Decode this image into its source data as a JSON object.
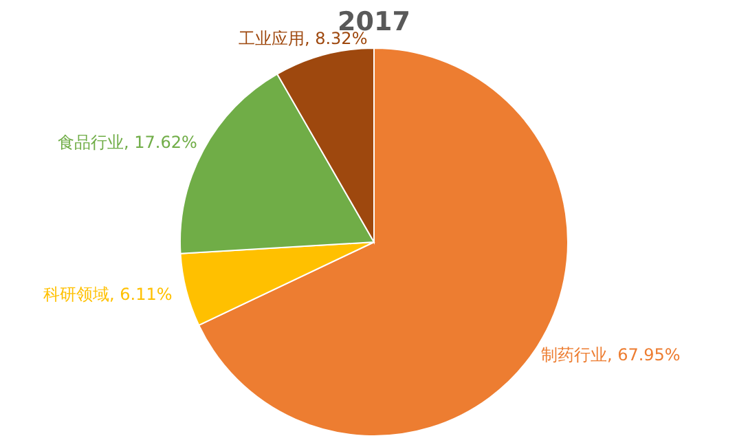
{
  "chart_data": {
    "type": "pie",
    "title": "2017",
    "categories": [
      "制药行业, 67.95%",
      "科研领域, 6.11%",
      "食品行业, 17.62%",
      "工业应用, 8.32%"
    ],
    "values": [
      67.95,
      6.11,
      17.62,
      8.32
    ],
    "colors": [
      "#ed7d31",
      "#ffc000",
      "#70ad47",
      "#9e480e"
    ]
  }
}
